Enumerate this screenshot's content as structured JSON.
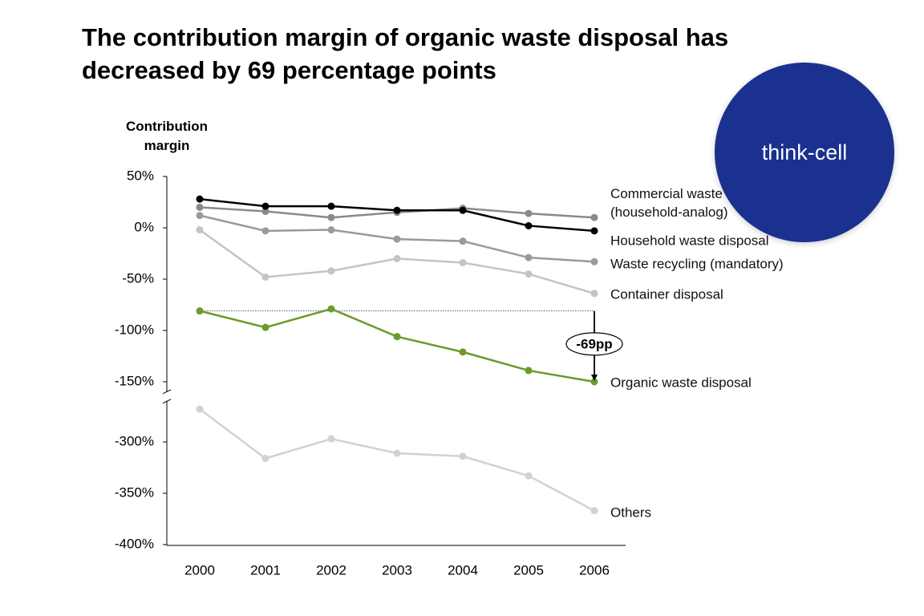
{
  "chart_data": {
    "type": "line",
    "title": "The contribution margin of organic waste disposal has decreased by 69 percentage points",
    "y_label": "Contribution margin",
    "categories": [
      "2000",
      "2001",
      "2002",
      "2003",
      "2004",
      "2005",
      "2006"
    ],
    "series": [
      {
        "name": "Commercial waste (household-analog)",
        "color": "#8a8a8a",
        "values": [
          20,
          16,
          10,
          15,
          19,
          14,
          10
        ]
      },
      {
        "name": "Household waste disposal",
        "color": "#000000",
        "values": [
          28,
          21,
          21,
          17,
          17,
          2,
          -3
        ]
      },
      {
        "name": "Waste recycling (mandatory)",
        "color": "#9a9a9a",
        "values": [
          12,
          -3,
          -2,
          -11,
          -13,
          -29,
          -33
        ]
      },
      {
        "name": "Container disposal",
        "color": "#c4c4c4",
        "values": [
          -2,
          -48,
          -42,
          -30,
          -34,
          -45,
          -64
        ]
      },
      {
        "name": "Organic waste disposal",
        "color": "#6b9b2b",
        "values": [
          -81,
          -97,
          -79,
          -106,
          -121,
          -139,
          -150
        ]
      },
      {
        "name": "Others",
        "color": "#d2d2d2",
        "values": [
          -268,
          -316,
          -297,
          -311,
          -314,
          -333,
          -367
        ]
      }
    ],
    "ylim": [
      -400,
      50
    ],
    "ybreak": [
      -260,
      -160
    ],
    "yticks": [
      {
        "value": 50,
        "label": "50%"
      },
      {
        "value": 0,
        "label": "0%"
      },
      {
        "value": -50,
        "label": "-50%"
      },
      {
        "value": -100,
        "label": "-100%"
      },
      {
        "value": -150,
        "label": "-150%"
      },
      {
        "value": -300,
        "label": "-300%"
      },
      {
        "value": -350,
        "label": "-350%"
      },
      {
        "value": -400,
        "label": "-400%"
      }
    ],
    "annotation": {
      "text": "-69pp",
      "series": 4
    }
  },
  "watermark": "think-cell"
}
